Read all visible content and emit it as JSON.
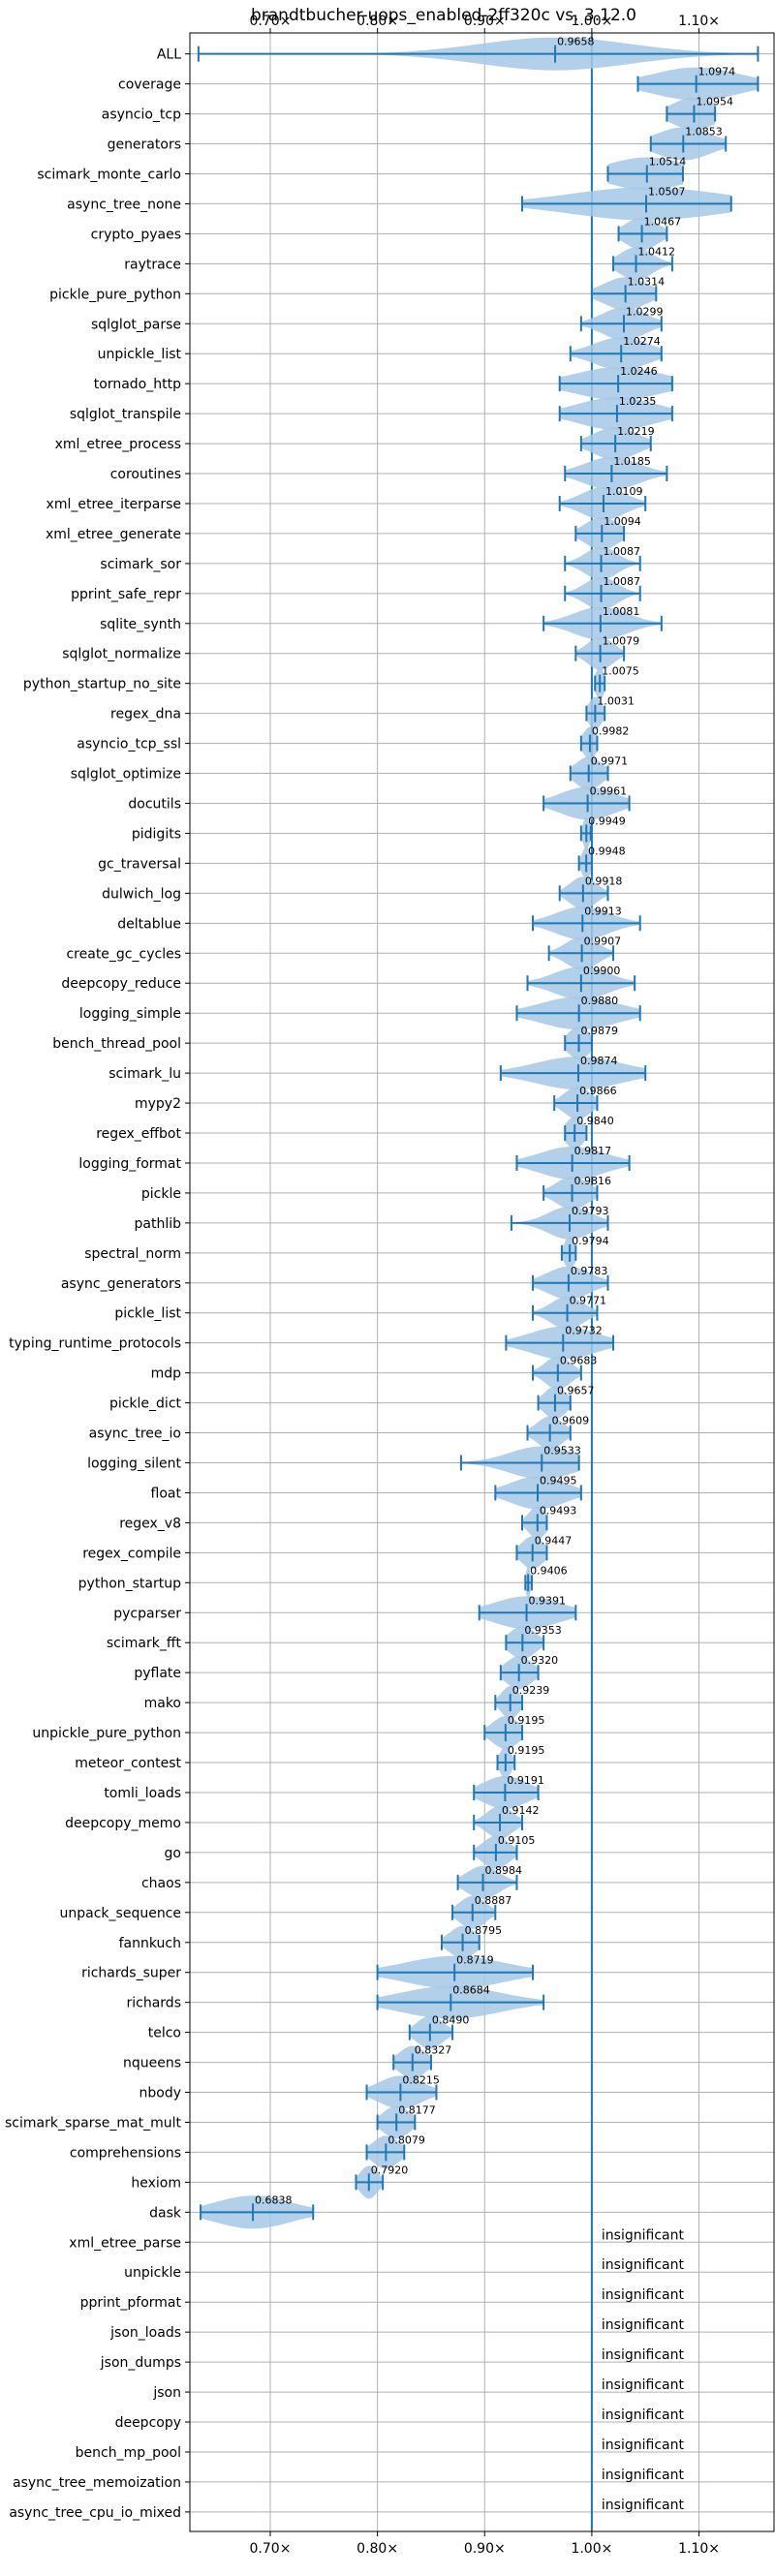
{
  "chart_data": {
    "type": "violin",
    "title": "brandtbucher-uops_enabled-2ff320c vs. 3.12.0",
    "xlabel": "",
    "ylabel": "",
    "xlim": [
      0.625,
      1.17
    ],
    "xticks": [
      0.7,
      0.8,
      0.9,
      1.0,
      1.1
    ],
    "xtick_labels": [
      "0.70×",
      "0.80×",
      "0.90×",
      "1.00×",
      "1.10×"
    ],
    "reference_line": 1.0,
    "grid": true,
    "colors": {
      "violin": "#a6c8e6",
      "line": "#1f77b4",
      "grid": "#b0b0b0"
    },
    "insignificant_text": "insignificant",
    "rows": [
      {
        "name": "ALL",
        "median": 0.9658,
        "lo": 0.633,
        "hi": 1.155,
        "spread": 0.07
      },
      {
        "name": "coverage",
        "median": 1.0974,
        "lo": 1.043,
        "hi": 1.155,
        "spread": 0.04
      },
      {
        "name": "asyncio_tcp",
        "median": 1.0954,
        "lo": 1.07,
        "hi": 1.115,
        "spread": 0.02
      },
      {
        "name": "generators",
        "median": 1.0853,
        "lo": 1.055,
        "hi": 1.125,
        "spread": 0.025
      },
      {
        "name": "scimark_monte_carlo",
        "median": 1.0514,
        "lo": 1.015,
        "hi": 1.085,
        "spread": 0.035
      },
      {
        "name": "async_tree_none",
        "median": 1.0507,
        "lo": 0.935,
        "hi": 1.13,
        "spread": 0.07
      },
      {
        "name": "crypto_pyaes",
        "median": 1.0467,
        "lo": 1.025,
        "hi": 1.07,
        "spread": 0.015
      },
      {
        "name": "raytrace",
        "median": 1.0412,
        "lo": 1.02,
        "hi": 1.075,
        "spread": 0.015
      },
      {
        "name": "pickle_pure_python",
        "median": 1.0314,
        "lo": 1.0,
        "hi": 1.06,
        "spread": 0.02
      },
      {
        "name": "sqlglot_parse",
        "median": 1.0299,
        "lo": 0.99,
        "hi": 1.065,
        "spread": 0.02
      },
      {
        "name": "unpickle_list",
        "median": 1.0274,
        "lo": 0.98,
        "hi": 1.065,
        "spread": 0.025
      },
      {
        "name": "tornado_http",
        "median": 1.0246,
        "lo": 0.97,
        "hi": 1.075,
        "spread": 0.04
      },
      {
        "name": "sqlglot_transpile",
        "median": 1.0235,
        "lo": 0.97,
        "hi": 1.075,
        "spread": 0.035
      },
      {
        "name": "xml_etree_process",
        "median": 1.0219,
        "lo": 0.99,
        "hi": 1.055,
        "spread": 0.02
      },
      {
        "name": "coroutines",
        "median": 1.0185,
        "lo": 0.975,
        "hi": 1.07,
        "spread": 0.025
      },
      {
        "name": "xml_etree_iterparse",
        "median": 1.0109,
        "lo": 0.97,
        "hi": 1.05,
        "spread": 0.02
      },
      {
        "name": "xml_etree_generate",
        "median": 1.0094,
        "lo": 0.985,
        "hi": 1.03,
        "spread": 0.015
      },
      {
        "name": "scimark_sor",
        "median": 1.0087,
        "lo": 0.975,
        "hi": 1.045,
        "spread": 0.015
      },
      {
        "name": "pprint_safe_repr",
        "median": 1.0087,
        "lo": 0.975,
        "hi": 1.045,
        "spread": 0.015
      },
      {
        "name": "sqlite_synth",
        "median": 1.0081,
        "lo": 0.955,
        "hi": 1.065,
        "spread": 0.025
      },
      {
        "name": "sqlglot_normalize",
        "median": 1.0079,
        "lo": 0.985,
        "hi": 1.03,
        "spread": 0.012
      },
      {
        "name": "python_startup_no_site",
        "median": 1.0075,
        "lo": 1.003,
        "hi": 1.012,
        "spread": 0.004
      },
      {
        "name": "regex_dna",
        "median": 1.0031,
        "lo": 0.995,
        "hi": 1.012,
        "spread": 0.006
      },
      {
        "name": "asyncio_tcp_ssl",
        "median": 0.9982,
        "lo": 0.99,
        "hi": 1.005,
        "spread": 0.006
      },
      {
        "name": "sqlglot_optimize",
        "median": 0.9971,
        "lo": 0.98,
        "hi": 1.015,
        "spread": 0.012
      },
      {
        "name": "docutils",
        "median": 0.9961,
        "lo": 0.955,
        "hi": 1.035,
        "spread": 0.025
      },
      {
        "name": "pidigits",
        "median": 0.9949,
        "lo": 0.99,
        "hi": 0.999,
        "spread": 0.003
      },
      {
        "name": "gc_traversal",
        "median": 0.9948,
        "lo": 0.988,
        "hi": 1.0,
        "spread": 0.004
      },
      {
        "name": "dulwich_log",
        "median": 0.9918,
        "lo": 0.97,
        "hi": 1.015,
        "spread": 0.012
      },
      {
        "name": "deltablue",
        "median": 0.9913,
        "lo": 0.945,
        "hi": 1.045,
        "spread": 0.025
      },
      {
        "name": "create_gc_cycles",
        "median": 0.9907,
        "lo": 0.96,
        "hi": 1.02,
        "spread": 0.015
      },
      {
        "name": "deepcopy_reduce",
        "median": 0.99,
        "lo": 0.94,
        "hi": 1.04,
        "spread": 0.025
      },
      {
        "name": "logging_simple",
        "median": 0.988,
        "lo": 0.93,
        "hi": 1.045,
        "spread": 0.035
      },
      {
        "name": "bench_thread_pool",
        "median": 0.9879,
        "lo": 0.975,
        "hi": 1.0,
        "spread": 0.01
      },
      {
        "name": "scimark_lu",
        "median": 0.9874,
        "lo": 0.915,
        "hi": 1.05,
        "spread": 0.04
      },
      {
        "name": "mypy2",
        "median": 0.9866,
        "lo": 0.965,
        "hi": 1.005,
        "spread": 0.012
      },
      {
        "name": "regex_effbot",
        "median": 0.984,
        "lo": 0.975,
        "hi": 0.995,
        "spread": 0.008
      },
      {
        "name": "logging_format",
        "median": 0.9817,
        "lo": 0.93,
        "hi": 1.035,
        "spread": 0.03
      },
      {
        "name": "pickle",
        "median": 0.9816,
        "lo": 0.955,
        "hi": 1.005,
        "spread": 0.015
      },
      {
        "name": "pathlib",
        "median": 0.9793,
        "lo": 0.925,
        "hi": 1.015,
        "spread": 0.02
      },
      {
        "name": "spectral_norm",
        "median": 0.9794,
        "lo": 0.972,
        "hi": 0.985,
        "spread": 0.005
      },
      {
        "name": "async_generators",
        "median": 0.9783,
        "lo": 0.945,
        "hi": 1.015,
        "spread": 0.02
      },
      {
        "name": "pickle_list",
        "median": 0.9771,
        "lo": 0.945,
        "hi": 1.005,
        "spread": 0.015
      },
      {
        "name": "typing_runtime_protocols",
        "median": 0.9732,
        "lo": 0.92,
        "hi": 1.02,
        "spread": 0.03
      },
      {
        "name": "mdp",
        "median": 0.9683,
        "lo": 0.945,
        "hi": 0.99,
        "spread": 0.012
      },
      {
        "name": "pickle_dict",
        "median": 0.9657,
        "lo": 0.95,
        "hi": 0.98,
        "spread": 0.01
      },
      {
        "name": "async_tree_io",
        "median": 0.9609,
        "lo": 0.94,
        "hi": 0.98,
        "spread": 0.012
      },
      {
        "name": "logging_silent",
        "median": 0.9533,
        "lo": 0.878,
        "hi": 0.988,
        "spread": 0.03
      },
      {
        "name": "float",
        "median": 0.9495,
        "lo": 0.91,
        "hi": 0.99,
        "spread": 0.025
      },
      {
        "name": "regex_v8",
        "median": 0.9493,
        "lo": 0.935,
        "hi": 0.958,
        "spread": 0.008
      },
      {
        "name": "regex_compile",
        "median": 0.9447,
        "lo": 0.93,
        "hi": 0.958,
        "spread": 0.01
      },
      {
        "name": "python_startup",
        "median": 0.9406,
        "lo": 0.938,
        "hi": 0.944,
        "spread": 0.002
      },
      {
        "name": "pycparser",
        "median": 0.9391,
        "lo": 0.895,
        "hi": 0.985,
        "spread": 0.03
      },
      {
        "name": "scimark_fft",
        "median": 0.9353,
        "lo": 0.92,
        "hi": 0.955,
        "spread": 0.012
      },
      {
        "name": "pyflate",
        "median": 0.932,
        "lo": 0.915,
        "hi": 0.95,
        "spread": 0.012
      },
      {
        "name": "mako",
        "median": 0.9239,
        "lo": 0.91,
        "hi": 0.935,
        "spread": 0.008
      },
      {
        "name": "unpickle_pure_python",
        "median": 0.9195,
        "lo": 0.9,
        "hi": 0.935,
        "spread": 0.012
      },
      {
        "name": "meteor_contest",
        "median": 0.9195,
        "lo": 0.912,
        "hi": 0.928,
        "spread": 0.005
      },
      {
        "name": "tomli_loads",
        "median": 0.9191,
        "lo": 0.89,
        "hi": 0.95,
        "spread": 0.02
      },
      {
        "name": "deepcopy_memo",
        "median": 0.9142,
        "lo": 0.89,
        "hi": 0.935,
        "spread": 0.012
      },
      {
        "name": "go",
        "median": 0.9105,
        "lo": 0.89,
        "hi": 0.93,
        "spread": 0.012
      },
      {
        "name": "chaos",
        "median": 0.8984,
        "lo": 0.875,
        "hi": 0.93,
        "spread": 0.015
      },
      {
        "name": "unpack_sequence",
        "median": 0.8887,
        "lo": 0.87,
        "hi": 0.91,
        "spread": 0.012
      },
      {
        "name": "fannkuch",
        "median": 0.8795,
        "lo": 0.86,
        "hi": 0.895,
        "spread": 0.012
      },
      {
        "name": "richards_super",
        "median": 0.8719,
        "lo": 0.8,
        "hi": 0.945,
        "spread": 0.045
      },
      {
        "name": "richards",
        "median": 0.8684,
        "lo": 0.8,
        "hi": 0.955,
        "spread": 0.045
      },
      {
        "name": "telco",
        "median": 0.849,
        "lo": 0.83,
        "hi": 0.87,
        "spread": 0.012
      },
      {
        "name": "nqueens",
        "median": 0.8327,
        "lo": 0.815,
        "hi": 0.85,
        "spread": 0.012
      },
      {
        "name": "nbody",
        "median": 0.8215,
        "lo": 0.79,
        "hi": 0.855,
        "spread": 0.02
      },
      {
        "name": "scimark_sparse_mat_mult",
        "median": 0.8177,
        "lo": 0.8,
        "hi": 0.835,
        "spread": 0.012
      },
      {
        "name": "comprehensions",
        "median": 0.8079,
        "lo": 0.79,
        "hi": 0.825,
        "spread": 0.012
      },
      {
        "name": "hexiom",
        "median": 0.792,
        "lo": 0.78,
        "hi": 0.805,
        "spread": 0.008
      },
      {
        "name": "dask",
        "median": 0.6838,
        "lo": 0.635,
        "hi": 0.74,
        "spread": 0.035
      },
      {
        "name": "xml_etree_parse",
        "insignificant": true
      },
      {
        "name": "unpickle",
        "insignificant": true
      },
      {
        "name": "pprint_pformat",
        "insignificant": true
      },
      {
        "name": "json_loads",
        "insignificant": true
      },
      {
        "name": "json_dumps",
        "insignificant": true
      },
      {
        "name": "json",
        "insignificant": true
      },
      {
        "name": "deepcopy",
        "insignificant": true
      },
      {
        "name": "bench_mp_pool",
        "insignificant": true
      },
      {
        "name": "async_tree_memoization",
        "insignificant": true
      },
      {
        "name": "async_tree_cpu_io_mixed",
        "insignificant": true
      }
    ]
  }
}
